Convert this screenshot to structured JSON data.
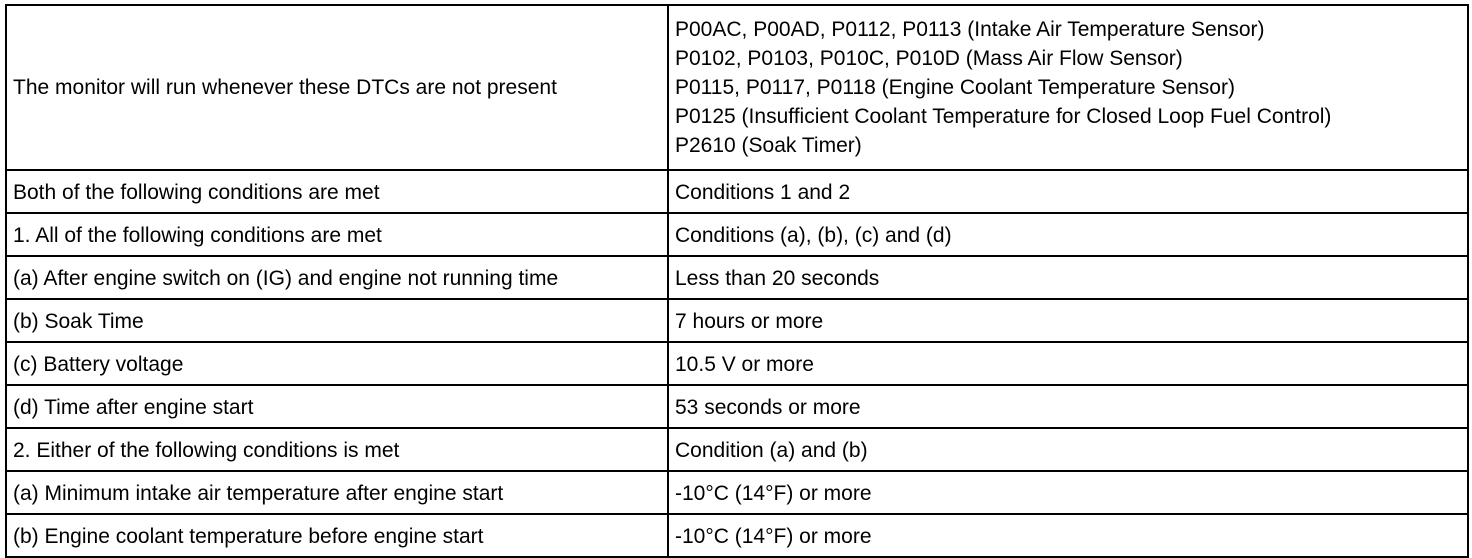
{
  "rows": [
    {
      "condition": "The monitor will run whenever these DTCs are not present",
      "values": [
        "P00AC, P00AD, P0112, P0113 (Intake Air Temperature Sensor)",
        "P0102, P0103, P010C, P010D (Mass Air Flow Sensor)",
        "P0115, P0117, P0118 (Engine Coolant Temperature Sensor)",
        "P0125 (Insufficient Coolant Temperature for Closed Loop Fuel Control)",
        "P2610 (Soak Timer)"
      ]
    },
    {
      "condition": "Both of the following conditions are met",
      "value": "Conditions 1 and 2"
    },
    {
      "condition": "1. All of the following conditions are met",
      "value": "Conditions (a), (b), (c) and (d)"
    },
    {
      "condition": "(a) After engine switch on (IG) and engine not running time",
      "value": "Less than 20 seconds"
    },
    {
      "condition": "(b) Soak Time",
      "value": "7 hours or more"
    },
    {
      "condition": "(c) Battery voltage",
      "value": "10.5 V or more"
    },
    {
      "condition": "(d) Time after engine start",
      "value": "53 seconds or more"
    },
    {
      "condition": "2. Either of the following conditions is met",
      "value": "Condition (a) and (b)"
    },
    {
      "condition": "(a) Minimum intake air temperature after engine start",
      "value": "-10°C (14°F) or more"
    },
    {
      "condition": "(b) Engine coolant temperature before engine start",
      "value": "-10°C (14°F) or more"
    }
  ]
}
